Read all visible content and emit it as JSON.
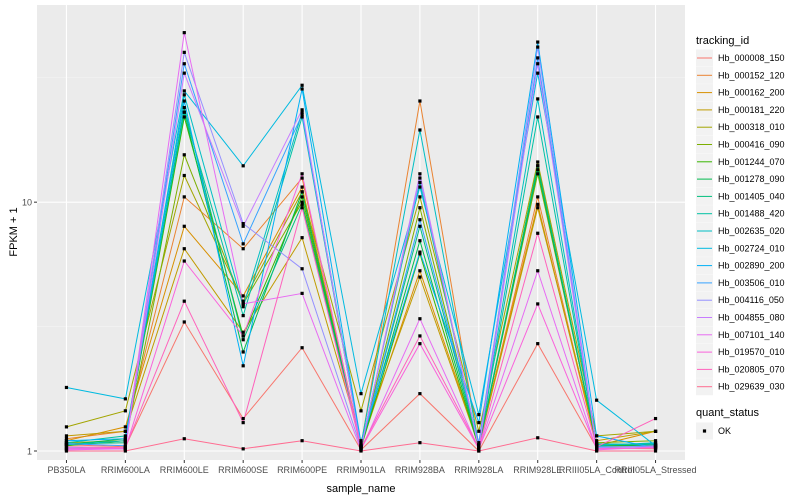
{
  "chart_data": {
    "type": "line",
    "xlabel": "sample_name",
    "ylabel": "FPKM + 1",
    "y_scale": "log10",
    "ylim": [
      0.92,
      62
    ],
    "grid": true,
    "legend_placement": "right",
    "yticks": [
      {
        "value": 1,
        "label": "1"
      },
      {
        "value": 10,
        "label": "10"
      }
    ],
    "categories": [
      "PB350LA",
      "RRIM600LA",
      "RRIM600LE",
      "RRIM600SE",
      "RRIM600PE",
      "RRIM901LA",
      "RRIM928BA",
      "RRIM928LA",
      "RRIM928LE",
      "RRIII05LA_Control",
      "RRIII05LA_Stressed"
    ],
    "color_legend": {
      "title": "tracking_id",
      "entries": [
        "Hb_000008_150",
        "Hb_000152_120",
        "Hb_000162_200",
        "Hb_000181_220",
        "Hb_000318_010",
        "Hb_000416_090",
        "Hb_001244_070",
        "Hb_001278_090",
        "Hb_001405_040",
        "Hb_001488_420",
        "Hb_002635_020",
        "Hb_002724_010",
        "Hb_002890_200",
        "Hb_003506_010",
        "Hb_004116_050",
        "Hb_004855_080",
        "Hb_007101_140",
        "Hb_019570_010",
        "Hb_020805_070",
        "Hb_029639_030"
      ]
    },
    "shape_legend": {
      "title": "quant_status",
      "entries": [
        "OK"
      ]
    },
    "series": [
      {
        "name": "Hb_000008_150",
        "color": "#F8766D",
        "values": [
          1.06,
          1.04,
          3.3,
          1.35,
          2.6,
          1.01,
          1.7,
          1.0,
          2.7,
          1.03,
          1.02
        ]
      },
      {
        "name": "Hb_000152_120",
        "color": "#EA8331",
        "values": [
          1.12,
          1.2,
          10.5,
          6.5,
          12.5,
          1.05,
          25.5,
          1.05,
          10.5,
          1.05,
          1.06
        ]
      },
      {
        "name": "Hb_000162_200",
        "color": "#D89000",
        "values": [
          1.1,
          1.25,
          8.0,
          4.2,
          11.5,
          1.05,
          5.3,
          1.06,
          9.8,
          1.05,
          1.2
        ]
      },
      {
        "name": "Hb_000181_220",
        "color": "#C09B00",
        "values": [
          1.15,
          1.2,
          6.5,
          3.0,
          7.2,
          1.1,
          5.0,
          1.05,
          9.5,
          1.1,
          1.2
        ]
      },
      {
        "name": "Hb_000318_010",
        "color": "#A3A500",
        "values": [
          1.25,
          1.45,
          12.8,
          4.0,
          11.0,
          1.45,
          10.5,
          1.2,
          14.5,
          1.15,
          1.2
        ]
      },
      {
        "name": "Hb_000416_090",
        "color": "#7CAE00",
        "values": [
          1.08,
          1.1,
          15.5,
          3.9,
          10.0,
          1.05,
          9.5,
          1.05,
          13.0,
          1.08,
          1.1
        ]
      },
      {
        "name": "Hb_001244_070",
        "color": "#39B600",
        "values": [
          1.05,
          1.1,
          22.0,
          2.9,
          10.5,
          1.03,
          6.2,
          1.03,
          14.0,
          1.05,
          1.05
        ]
      },
      {
        "name": "Hb_001278_090",
        "color": "#00BB4E",
        "values": [
          1.06,
          1.12,
          23.0,
          2.5,
          11.0,
          1.04,
          7.0,
          1.04,
          13.5,
          1.06,
          1.05
        ]
      },
      {
        "name": "Hb_001405_040",
        "color": "#00BF7D",
        "values": [
          1.07,
          1.08,
          24.0,
          2.8,
          9.8,
          1.05,
          8.0,
          1.05,
          14.0,
          1.07,
          1.06
        ]
      },
      {
        "name": "Hb_001488_420",
        "color": "#00C1A3",
        "values": [
          1.08,
          1.15,
          23.0,
          3.5,
          22.0,
          1.04,
          12.0,
          1.04,
          22.0,
          1.05,
          1.08
        ]
      },
      {
        "name": "Hb_002635_020",
        "color": "#00BFC4",
        "values": [
          1.06,
          1.1,
          27.0,
          3.8,
          23.0,
          1.06,
          19.5,
          1.06,
          26.0,
          1.06,
          1.07
        ]
      },
      {
        "name": "Hb_002724_010",
        "color": "#00BAE0",
        "values": [
          1.8,
          1.62,
          28.0,
          14.0,
          29.5,
          1.7,
          11.5,
          1.4,
          33.0,
          1.6,
          1.05
        ]
      },
      {
        "name": "Hb_002890_200",
        "color": "#00B0F6",
        "values": [
          1.1,
          1.12,
          25.5,
          2.2,
          28.5,
          1.08,
          6.3,
          1.3,
          44.0,
          1.15,
          1.03
        ]
      },
      {
        "name": "Hb_003506_010",
        "color": "#35A2FF",
        "values": [
          1.07,
          1.05,
          36.0,
          6.8,
          22.5,
          1.04,
          8.5,
          1.08,
          38.0,
          1.04,
          1.04
        ]
      },
      {
        "name": "Hb_004116_050",
        "color": "#9590FF",
        "values": [
          1.03,
          1.02,
          40.0,
          8.2,
          5.4,
          1.03,
          12.5,
          1.03,
          42.0,
          1.03,
          1.05
        ]
      },
      {
        "name": "Hb_004855_080",
        "color": "#C77CFF",
        "values": [
          1.02,
          1.03,
          33.0,
          8.0,
          23.5,
          1.02,
          13.0,
          1.02,
          36.0,
          1.02,
          1.03
        ]
      },
      {
        "name": "Hb_007101_140",
        "color": "#E76BF3",
        "values": [
          1.01,
          1.02,
          48.0,
          3.9,
          4.3,
          1.01,
          3.4,
          1.02,
          5.3,
          1.01,
          1.04
        ]
      },
      {
        "name": "Hb_019570_010",
        "color": "#FA62DB",
        "values": [
          1.02,
          1.02,
          5.8,
          2.9,
          13.0,
          1.02,
          2.7,
          1.02,
          3.9,
          1.02,
          1.03
        ]
      },
      {
        "name": "Hb_020805_070",
        "color": "#FF62BC",
        "values": [
          1.04,
          1.03,
          4.0,
          1.3,
          9.5,
          1.03,
          2.9,
          1.03,
          7.5,
          1.04,
          1.35
        ]
      },
      {
        "name": "Hb_029639_030",
        "color": "#FF6C91",
        "values": [
          1.0,
          1.0,
          1.12,
          1.02,
          1.1,
          1.0,
          1.08,
          1.0,
          1.13,
          1.0,
          1.0
        ]
      }
    ]
  }
}
